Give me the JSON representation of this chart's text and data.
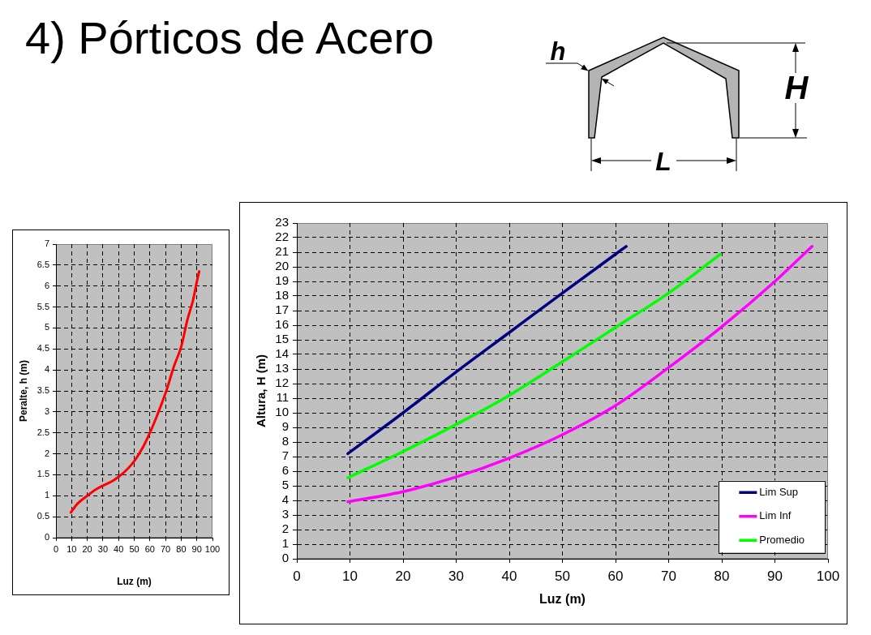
{
  "chart_data": [
    {
      "type": "line",
      "title": "4) Pórticos de Acero",
      "xlabel": "Luz (m)",
      "ylabel": "Peralte, h (m)",
      "x": [
        9.5,
        13.5,
        20,
        25.5,
        30.5,
        36,
        40,
        46,
        50.5,
        55.5,
        60,
        65,
        70.5,
        75.5,
        80,
        84,
        87.5,
        90,
        91.5
      ],
      "series": [
        {
          "color": "#ff0000",
          "values": [
            0.6,
            0.8,
            1.0,
            1.15,
            1.25,
            1.35,
            1.45,
            1.65,
            1.85,
            2.15,
            2.5,
            2.95,
            3.5,
            4.1,
            4.55,
            5.2,
            5.65,
            6.1,
            6.35
          ]
        }
      ],
      "xlim": [
        0,
        100
      ],
      "xticks": [
        0,
        10,
        20,
        30,
        40,
        50,
        60,
        70,
        80,
        90,
        100
      ],
      "ylim": [
        0,
        7
      ],
      "yticks": [
        0,
        0.5,
        1,
        1.5,
        2,
        2.5,
        3,
        3.5,
        4,
        4.5,
        5,
        5.5,
        6,
        6.5,
        7
      ],
      "grid": true
    },
    {
      "type": "line",
      "xlabel": "Luz (m)",
      "ylabel": "Altura, H (m)",
      "series": [
        {
          "name": "Lim Sup",
          "color": "#000080",
          "x": [
            9.6,
            20,
            30,
            40,
            50,
            62
          ],
          "values": [
            7.2,
            10.0,
            12.8,
            15.5,
            18.2,
            21.4
          ]
        },
        {
          "name": "Lim Inf",
          "color": "#ff00ff",
          "x": [
            9.6,
            20,
            30,
            40,
            50,
            60,
            70,
            80,
            90,
            97
          ],
          "values": [
            3.9,
            4.6,
            5.6,
            6.9,
            8.5,
            10.5,
            13.1,
            15.9,
            19.0,
            21.4
          ]
        },
        {
          "name": "Promedio",
          "color": "#00ff00",
          "x": [
            9.6,
            20,
            30,
            40,
            50,
            60,
            70,
            79.7
          ],
          "values": [
            5.55,
            7.35,
            9.2,
            11.2,
            13.5,
            15.85,
            18.2,
            20.85
          ]
        }
      ],
      "xlim": [
        0,
        100
      ],
      "xticks": [
        0,
        10,
        20,
        30,
        40,
        50,
        60,
        70,
        80,
        90,
        100
      ],
      "ylim": [
        0,
        23
      ],
      "yticks": [
        0,
        1,
        2,
        3,
        4,
        5,
        6,
        7,
        8,
        9,
        10,
        11,
        12,
        13,
        14,
        15,
        16,
        17,
        18,
        19,
        20,
        21,
        22,
        23
      ],
      "grid": true,
      "legend": "bottom right",
      "annotations": [
        "h",
        "H",
        "L"
      ]
    }
  ]
}
